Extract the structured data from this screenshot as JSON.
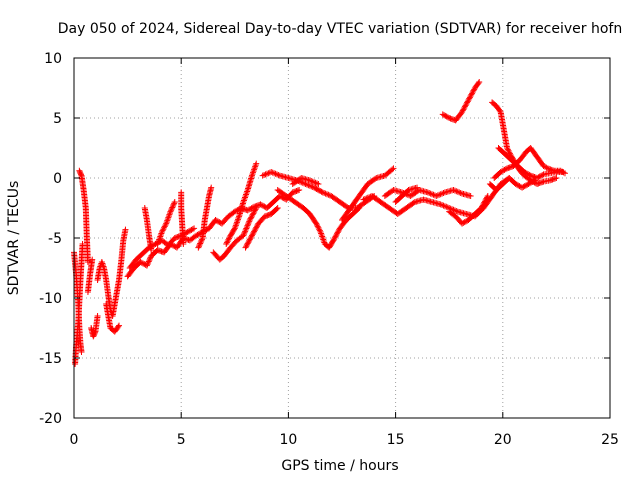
{
  "chart_data": {
    "type": "scatter",
    "title": "Day 050 of 2024, Sidereal Day-to-day VTEC variation (SDTVAR) for receiver hofn",
    "xlabel": "GPS time / hours",
    "ylabel": "SDTVAR / TECUs",
    "xlim": [
      0,
      25
    ],
    "ylim": [
      -20,
      10
    ],
    "xticks": [
      0,
      5,
      10,
      15,
      20,
      25
    ],
    "yticks": [
      -20,
      -15,
      -10,
      -5,
      0,
      5,
      10
    ],
    "grid": true,
    "marker": "+",
    "series": [
      {
        "name": "SDTVAR",
        "color": "#ff0000",
        "tracks": [
          [
            [
              0.0,
              -6.2
            ],
            [
              0.1,
              -8.0
            ],
            [
              0.2,
              -10.5
            ],
            [
              0.25,
              -12.5
            ],
            [
              0.3,
              -13.8
            ],
            [
              0.35,
              -14.5
            ]
          ],
          [
            [
              0.05,
              -15.5
            ],
            [
              0.1,
              -14.0
            ],
            [
              0.2,
              -12.0
            ],
            [
              0.3,
              -8.5
            ],
            [
              0.4,
              -5.5
            ]
          ],
          [
            [
              0.25,
              0.6
            ],
            [
              0.35,
              0.2
            ],
            [
              0.45,
              -1.0
            ],
            [
              0.55,
              -2.5
            ],
            [
              0.6,
              -5.0
            ],
            [
              0.65,
              -7.0
            ]
          ],
          [
            [
              0.65,
              -9.5
            ],
            [
              0.75,
              -8.0
            ],
            [
              0.85,
              -6.8
            ]
          ],
          [
            [
              0.8,
              -12.5
            ],
            [
              0.9,
              -13.2
            ],
            [
              1.0,
              -12.8
            ],
            [
              1.1,
              -11.5
            ]
          ],
          [
            [
              1.1,
              -8.5
            ],
            [
              1.2,
              -7.5
            ],
            [
              1.3,
              -7.0
            ],
            [
              1.4,
              -7.5
            ],
            [
              1.5,
              -8.5
            ],
            [
              1.6,
              -9.8
            ],
            [
              1.7,
              -11.0
            ],
            [
              1.8,
              -11.5
            ],
            [
              1.9,
              -10.5
            ],
            [
              2.0,
              -9.5
            ],
            [
              2.1,
              -8.5
            ],
            [
              2.2,
              -7.0
            ],
            [
              2.3,
              -5.2
            ],
            [
              2.4,
              -4.3
            ]
          ],
          [
            [
              1.5,
              -10.5
            ],
            [
              1.7,
              -12.5
            ],
            [
              1.9,
              -12.8
            ],
            [
              2.1,
              -12.3
            ]
          ],
          [
            [
              2.5,
              -8.2
            ],
            [
              2.8,
              -7.5
            ],
            [
              3.1,
              -7.0
            ],
            [
              3.4,
              -7.3
            ],
            [
              3.6,
              -6.5
            ],
            [
              3.9,
              -6.0
            ],
            [
              4.2,
              -6.2
            ],
            [
              4.5,
              -5.5
            ],
            [
              4.8,
              -5.8
            ],
            [
              5.1,
              -5.0
            ],
            [
              5.4,
              -5.2
            ],
            [
              5.7,
              -4.8
            ],
            [
              6.0,
              -4.5
            ],
            [
              6.3,
              -4.2
            ],
            [
              6.6,
              -3.5
            ],
            [
              6.9,
              -3.8
            ],
            [
              7.2,
              -3.2
            ],
            [
              7.5,
              -2.8
            ],
            [
              7.8,
              -2.5
            ],
            [
              8.1,
              -2.7
            ],
            [
              8.4,
              -2.4
            ],
            [
              8.7,
              -2.2
            ],
            [
              9.0,
              -2.5
            ],
            [
              9.3,
              -2.0
            ],
            [
              9.6,
              -1.5
            ],
            [
              9.9,
              -1.8
            ],
            [
              10.2,
              -1.2
            ],
            [
              10.5,
              -1.0
            ]
          ],
          [
            [
              2.6,
              -7.5
            ],
            [
              2.9,
              -6.8
            ],
            [
              3.2,
              -6.3
            ],
            [
              3.5,
              -5.8
            ],
            [
              3.8,
              -5.5
            ],
            [
              4.1,
              -5.2
            ],
            [
              4.4,
              -5.6
            ],
            [
              4.7,
              -5.0
            ],
            [
              5.0,
              -4.8
            ],
            [
              5.3,
              -4.5
            ],
            [
              5.6,
              -4.2
            ]
          ],
          [
            [
              3.3,
              -2.5
            ],
            [
              3.4,
              -3.5
            ],
            [
              3.5,
              -4.8
            ],
            [
              3.6,
              -6.0
            ]
          ],
          [
            [
              3.9,
              -5.5
            ],
            [
              4.1,
              -4.5
            ],
            [
              4.3,
              -3.8
            ],
            [
              4.5,
              -2.8
            ],
            [
              4.7,
              -2.0
            ]
          ],
          [
            [
              5.0,
              -1.2
            ],
            [
              5.0,
              -2.5
            ],
            [
              5.05,
              -4.0
            ],
            [
              5.1,
              -5.5
            ]
          ],
          [
            [
              5.8,
              -5.8
            ],
            [
              6.0,
              -5.0
            ],
            [
              6.1,
              -3.5
            ],
            [
              6.2,
              -2.5
            ],
            [
              6.3,
              -1.5
            ],
            [
              6.4,
              -0.8
            ]
          ],
          [
            [
              6.5,
              -6.2
            ],
            [
              6.8,
              -6.8
            ],
            [
              7.0,
              -6.5
            ],
            [
              7.3,
              -5.8
            ],
            [
              7.6,
              -5.2
            ],
            [
              7.9,
              -4.8
            ],
            [
              8.2,
              -3.5
            ],
            [
              8.5,
              -2.5
            ]
          ],
          [
            [
              7.1,
              -5.5
            ],
            [
              7.3,
              -4.8
            ],
            [
              7.5,
              -4.2
            ],
            [
              7.7,
              -3.2
            ],
            [
              7.9,
              -2.0
            ],
            [
              8.1,
              -1.0
            ],
            [
              8.3,
              0.2
            ],
            [
              8.5,
              1.2
            ]
          ],
          [
            [
              8.0,
              -5.8
            ],
            [
              8.3,
              -4.8
            ],
            [
              8.6,
              -3.8
            ],
            [
              8.9,
              -3.2
            ],
            [
              9.2,
              -3.0
            ],
            [
              9.5,
              -2.5
            ]
          ],
          [
            [
              8.8,
              0.2
            ],
            [
              9.2,
              0.5
            ],
            [
              9.6,
              0.2
            ],
            [
              10.0,
              0.0
            ],
            [
              10.4,
              -0.2
            ],
            [
              10.8,
              -0.5
            ],
            [
              11.2,
              -0.8
            ],
            [
              11.6,
              -1.2
            ],
            [
              12.0,
              -1.5
            ],
            [
              12.4,
              -2.0
            ],
            [
              12.8,
              -2.5
            ],
            [
              13.2,
              -2.5
            ],
            [
              13.6,
              -2.0
            ],
            [
              14.0,
              -1.5
            ]
          ],
          [
            [
              9.5,
              -1.0
            ],
            [
              9.9,
              -1.5
            ],
            [
              10.3,
              -2.0
            ],
            [
              10.7,
              -2.5
            ],
            [
              11.0,
              -3.0
            ],
            [
              11.3,
              -3.8
            ],
            [
              11.5,
              -4.5
            ],
            [
              11.7,
              -5.5
            ],
            [
              11.9,
              -5.8
            ],
            [
              12.1,
              -5.2
            ],
            [
              12.4,
              -4.2
            ],
            [
              12.7,
              -3.5
            ],
            [
              13.0,
              -3.0
            ],
            [
              13.3,
              -2.5
            ]
          ],
          [
            [
              10.2,
              -0.5
            ],
            [
              10.6,
              0.0
            ],
            [
              11.0,
              -0.2
            ],
            [
              11.4,
              -0.5
            ]
          ],
          [
            [
              12.5,
              -3.5
            ],
            [
              12.9,
              -2.5
            ],
            [
              13.3,
              -1.5
            ],
            [
              13.7,
              -0.5
            ],
            [
              14.1,
              0.0
            ],
            [
              14.5,
              0.2
            ],
            [
              14.9,
              0.8
            ]
          ],
          [
            [
              13.5,
              -1.8
            ],
            [
              13.9,
              -1.5
            ],
            [
              14.3,
              -2.0
            ],
            [
              14.7,
              -2.5
            ],
            [
              15.1,
              -3.0
            ],
            [
              15.5,
              -2.5
            ],
            [
              15.9,
              -2.0
            ],
            [
              16.3,
              -1.8
            ],
            [
              16.7,
              -2.0
            ],
            [
              17.1,
              -2.2
            ],
            [
              17.5,
              -2.5
            ],
            [
              17.9,
              -2.8
            ],
            [
              18.3,
              -3.0
            ],
            [
              18.7,
              -3.2
            ],
            [
              19.1,
              -2.5
            ],
            [
              19.5,
              -1.5
            ],
            [
              19.9,
              -0.5
            ],
            [
              20.3,
              0.0
            ]
          ],
          [
            [
              14.5,
              -1.5
            ],
            [
              14.9,
              -1.0
            ],
            [
              15.3,
              -1.2
            ],
            [
              15.7,
              -1.5
            ],
            [
              16.1,
              -1.0
            ],
            [
              16.5,
              -1.2
            ],
            [
              16.9,
              -1.5
            ],
            [
              17.3,
              -1.2
            ],
            [
              17.7,
              -1.0
            ],
            [
              18.1,
              -1.3
            ],
            [
              18.5,
              -1.5
            ]
          ],
          [
            [
              15.0,
              -2.0
            ],
            [
              15.3,
              -1.5
            ],
            [
              15.6,
              -1.0
            ],
            [
              16.0,
              -0.8
            ]
          ],
          [
            [
              17.2,
              5.3
            ],
            [
              17.5,
              5.0
            ],
            [
              17.8,
              4.8
            ],
            [
              18.1,
              5.5
            ],
            [
              18.4,
              6.5
            ],
            [
              18.7,
              7.5
            ],
            [
              18.9,
              8.0
            ]
          ],
          [
            [
              17.5,
              -2.8
            ],
            [
              17.8,
              -3.2
            ],
            [
              18.1,
              -3.8
            ],
            [
              18.4,
              -3.5
            ],
            [
              18.7,
              -3.0
            ],
            [
              19.0,
              -2.5
            ],
            [
              19.3,
              -1.5
            ]
          ],
          [
            [
              19.5,
              6.3
            ],
            [
              19.7,
              6.0
            ],
            [
              19.9,
              5.5
            ],
            [
              20.0,
              4.5
            ],
            [
              20.1,
              3.5
            ],
            [
              20.2,
              2.5
            ],
            [
              20.4,
              1.8
            ],
            [
              20.6,
              1.2
            ],
            [
              20.8,
              0.6
            ],
            [
              21.0,
              0.2
            ],
            [
              21.3,
              -0.2
            ],
            [
              21.6,
              -0.5
            ],
            [
              21.9,
              -0.3
            ],
            [
              22.2,
              -0.2
            ],
            [
              22.5,
              0.0
            ]
          ],
          [
            [
              19.8,
              2.5
            ],
            [
              20.1,
              2.0
            ],
            [
              20.4,
              1.5
            ],
            [
              20.7,
              1.0
            ],
            [
              21.0,
              0.5
            ],
            [
              21.3,
              0.2
            ],
            [
              21.6,
              0.0
            ],
            [
              21.9,
              0.3
            ],
            [
              22.2,
              0.4
            ],
            [
              22.5,
              0.5
            ],
            [
              22.8,
              0.5
            ]
          ],
          [
            [
              19.6,
              0.0
            ],
            [
              19.9,
              0.5
            ],
            [
              20.2,
              0.8
            ],
            [
              20.5,
              1.0
            ],
            [
              20.8,
              1.5
            ],
            [
              21.1,
              2.2
            ],
            [
              21.3,
              2.5
            ],
            [
              21.5,
              2.0
            ],
            [
              21.7,
              1.5
            ],
            [
              21.9,
              1.0
            ],
            [
              22.1,
              0.8
            ],
            [
              22.4,
              0.6
            ],
            [
              22.7,
              0.6
            ],
            [
              22.9,
              0.4
            ]
          ],
          [
            [
              19.4,
              -0.5
            ],
            [
              19.7,
              -1.0
            ],
            [
              20.0,
              -0.5
            ],
            [
              20.3,
              0.0
            ],
            [
              20.6,
              -0.5
            ],
            [
              20.9,
              -0.8
            ],
            [
              21.2,
              -0.5
            ],
            [
              21.5,
              -0.2
            ]
          ]
        ]
      }
    ]
  }
}
